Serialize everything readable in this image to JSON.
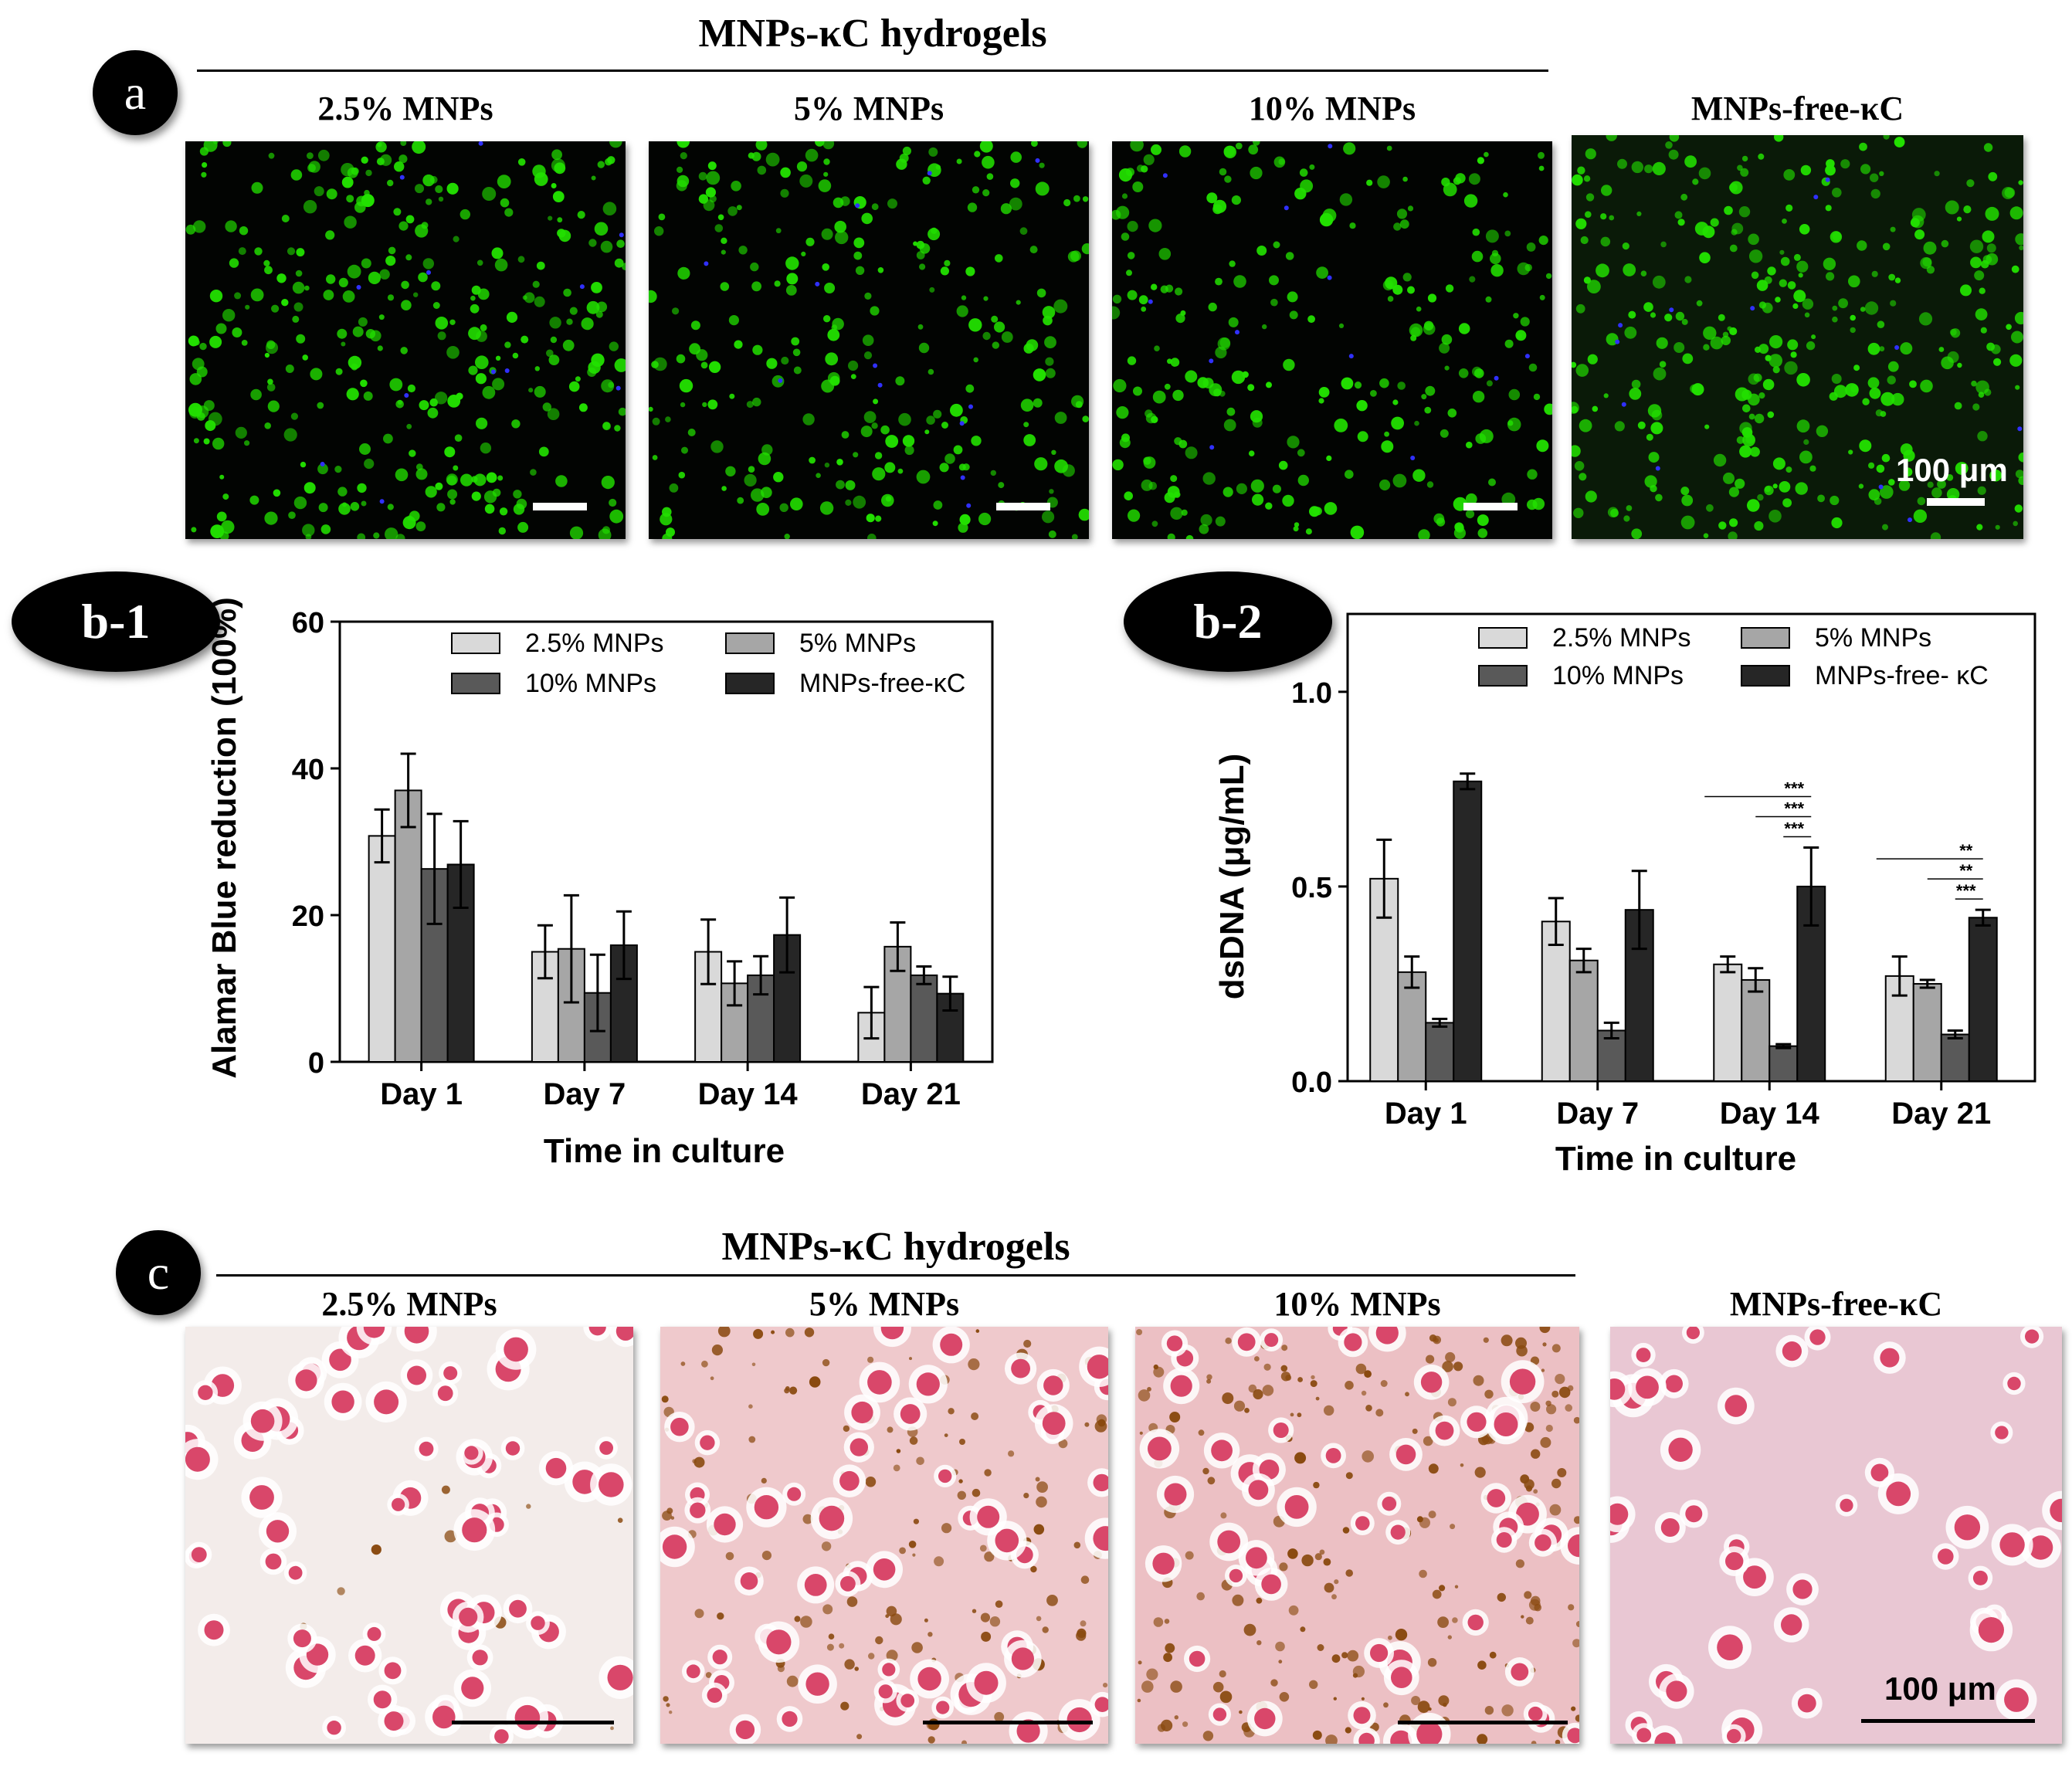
{
  "panel_a": {
    "label": "a",
    "group_title": "MNPs-κC hydrogels",
    "columns": [
      "2.5% MNPs",
      "5% MNPs",
      "10% MNPs",
      "MNPs-free-κC"
    ],
    "scale_label": "100 μm"
  },
  "panel_c": {
    "label": "c",
    "group_title": "MNPs-κC hydrogels",
    "columns": [
      "2.5% MNPs",
      "5% MNPs",
      "10% MNPs",
      "MNPs-free-κC"
    ],
    "scale_label": "100 μm"
  },
  "colors": {
    "s1": "#d9d9d9",
    "s2": "#a6a6a6",
    "s3": "#595959",
    "s4": "#262626",
    "fluor_cell": "#22e000",
    "nuclei": "#3030ff",
    "histo_cell": "#d9476a",
    "mnp_brown": "#8a4a10"
  },
  "chart_data": [
    {
      "panel_label": "b-1",
      "type": "bar",
      "categories": [
        "Day 1",
        "Day 7",
        "Day 14",
        "Day 21"
      ],
      "series": [
        {
          "name": "2.5% MNPs",
          "values": [
            30.8,
            15.0,
            15.0,
            6.7
          ],
          "errors": [
            3.6,
            3.6,
            4.4,
            3.5
          ]
        },
        {
          "name": "5% MNPs",
          "values": [
            37.0,
            15.4,
            10.7,
            15.7
          ],
          "errors": [
            5.0,
            7.3,
            3.0,
            3.3
          ]
        },
        {
          "name": "10% MNPs",
          "values": [
            26.3,
            9.4,
            11.8,
            11.8
          ],
          "errors": [
            7.5,
            5.2,
            2.6,
            1.2
          ]
        },
        {
          "name": "MNPs-free-κC",
          "values": [
            26.9,
            15.9,
            17.3,
            9.3
          ],
          "errors": [
            5.9,
            4.6,
            5.1,
            2.3
          ]
        }
      ],
      "ylabel": "Alamar Blue reduction (100%)",
      "xlabel": "Time in culture",
      "ylim": [
        0,
        60
      ],
      "yticks": [
        0,
        20,
        40,
        60
      ],
      "legend_placement": "top"
    },
    {
      "panel_label": "b-2",
      "type": "bar",
      "categories": [
        "Day 1",
        "Day 7",
        "Day 14",
        "Day 21"
      ],
      "series": [
        {
          "name": "2.5% MNPs",
          "values": [
            0.52,
            0.41,
            0.3,
            0.27
          ],
          "errors": [
            0.1,
            0.06,
            0.02,
            0.05
          ]
        },
        {
          "name": "5% MNPs",
          "values": [
            0.28,
            0.31,
            0.26,
            0.25
          ],
          "errors": [
            0.04,
            0.03,
            0.03,
            0.01
          ]
        },
        {
          "name": "10% MNPs",
          "values": [
            0.15,
            0.13,
            0.09,
            0.12
          ],
          "errors": [
            0.01,
            0.02,
            0.005,
            0.01
          ]
        },
        {
          "name": "MNPs-free- κC",
          "values": [
            0.77,
            0.44,
            0.5,
            0.42
          ],
          "errors": [
            0.02,
            0.1,
            0.1,
            0.02
          ]
        }
      ],
      "ylabel": "dsDNA (μg/mL)",
      "xlabel": "Time in culture",
      "ylim": [
        0,
        1.2
      ],
      "yticks": [
        "0.0",
        "0.5",
        "1.0"
      ],
      "legend_placement": "top",
      "significance": [
        {
          "category": "Day 14",
          "labels": [
            "***",
            "***",
            "***"
          ]
        },
        {
          "category": "Day 21",
          "labels": [
            "**",
            "**",
            "***"
          ]
        }
      ]
    }
  ]
}
